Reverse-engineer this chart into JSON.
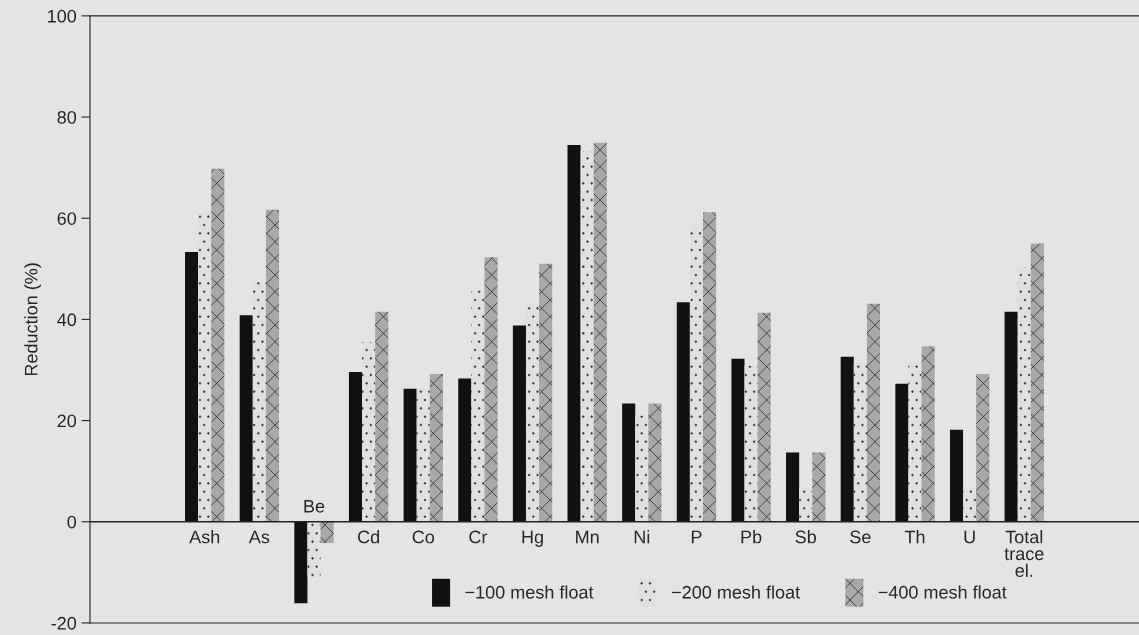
{
  "chart_data": {
    "type": "bar",
    "ylabel": "Reduction (%)",
    "categories": [
      "Ash",
      "As",
      "Be",
      "Cd",
      "Co",
      "Cr",
      "Hg",
      "Mn",
      "Ni",
      "P",
      "Pb",
      "Sb",
      "Se",
      "Th",
      "U",
      "Total\ntrace\nel."
    ],
    "series": [
      {
        "name": "−100 mesh float",
        "color": "#111111",
        "values": [
          53.3,
          40.8,
          -16.1,
          29.6,
          26.3,
          28.3,
          38.8,
          74.5,
          23.4,
          43.4,
          32.2,
          13.7,
          32.6,
          27.3,
          18.2,
          41.5
        ]
      },
      {
        "name": "−200 mesh float",
        "color": "#e0e0e0",
        "values": [
          61.3,
          47.4,
          -10.9,
          35.5,
          26.3,
          45.7,
          43.0,
          73.3,
          21.0,
          58.4,
          30.9,
          6.7,
          31.5,
          31.8,
          6.6,
          50.2
        ]
      },
      {
        "name": "−400 mesh float",
        "color": "#a8a8a8",
        "values": [
          69.8,
          61.7,
          -4.2,
          41.5,
          29.2,
          52.3,
          51.0,
          74.9,
          23.4,
          61.2,
          41.3,
          13.7,
          43.1,
          34.7,
          29.2,
          55.0
        ]
      }
    ],
    "ylim": [
      -20,
      100
    ],
    "yticks": [
      -20,
      0,
      20,
      40,
      60,
      80,
      100
    ],
    "legend": "bottom",
    "grid": false
  }
}
